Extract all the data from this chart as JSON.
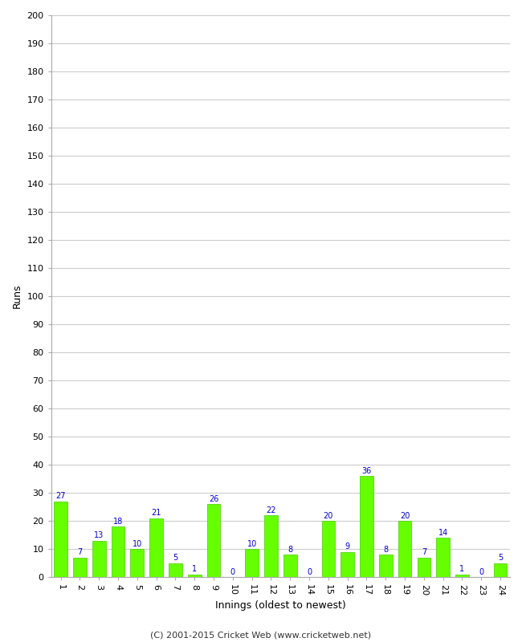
{
  "innings": [
    1,
    2,
    3,
    4,
    5,
    6,
    7,
    8,
    9,
    10,
    11,
    12,
    13,
    14,
    15,
    16,
    17,
    18,
    19,
    20,
    21,
    22,
    23,
    24
  ],
  "runs": [
    27,
    7,
    13,
    18,
    10,
    21,
    5,
    1,
    26,
    0,
    10,
    22,
    8,
    0,
    20,
    9,
    36,
    8,
    20,
    7,
    14,
    1,
    0,
    5
  ],
  "bar_color": "#66ff00",
  "bar_edge_color": "#44cc00",
  "label_color": "#0000cc",
  "xlabel": "Innings (oldest to newest)",
  "ylabel": "Runs",
  "ylim": [
    0,
    200
  ],
  "yticks": [
    0,
    10,
    20,
    30,
    40,
    50,
    60,
    70,
    80,
    90,
    100,
    110,
    120,
    130,
    140,
    150,
    160,
    170,
    180,
    190,
    200
  ],
  "footer": "(C) 2001-2015 Cricket Web (www.cricketweb.net)",
  "background_color": "#ffffff",
  "plot_bg_color": "#ffffff",
  "grid_color": "#cccccc",
  "label_fontsize": 7,
  "axis_tick_fontsize": 8,
  "axis_label_fontsize": 9,
  "footer_fontsize": 8
}
